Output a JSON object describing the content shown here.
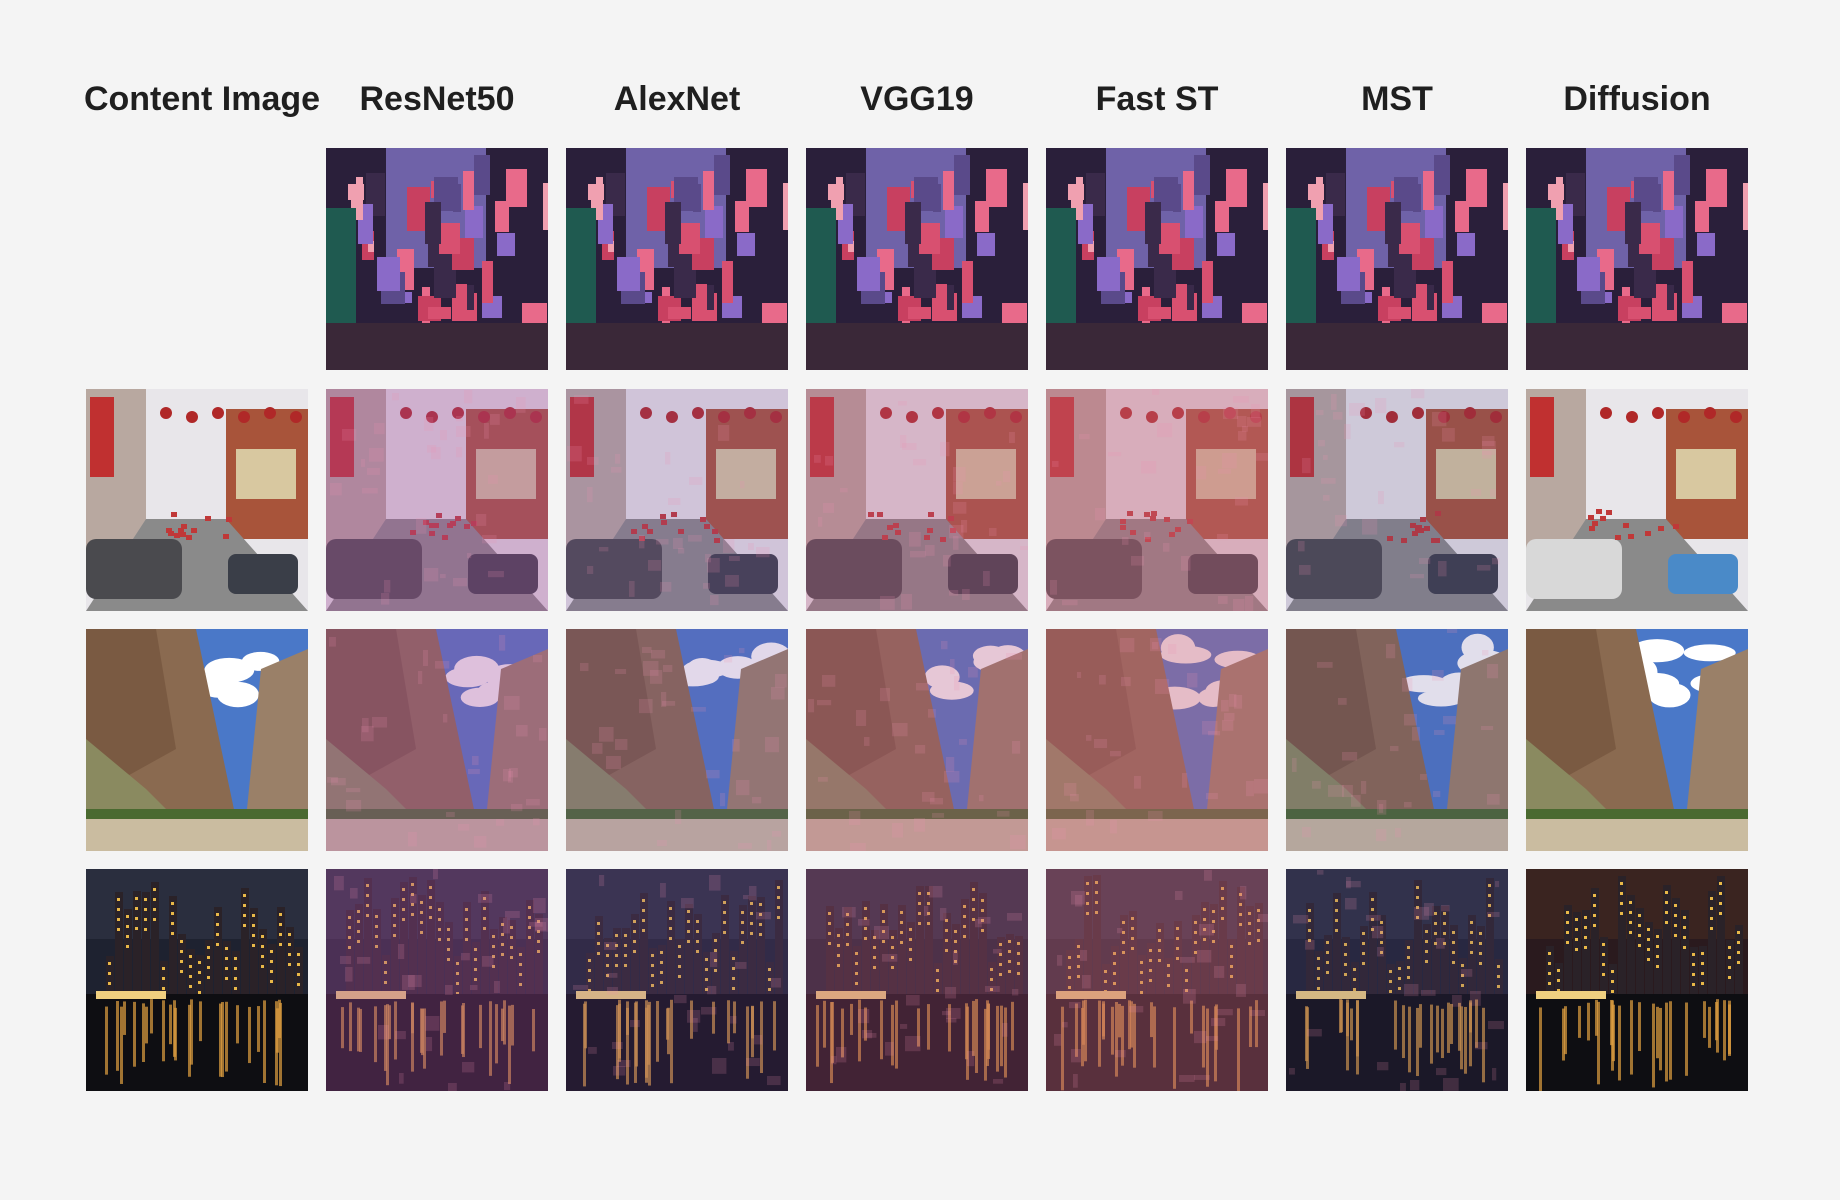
{
  "columns": [
    {
      "id": "content",
      "label": "Content Image"
    },
    {
      "id": "resnet50",
      "label": "ResNet50"
    },
    {
      "id": "alexnet",
      "label": "AlexNet"
    },
    {
      "id": "vgg19",
      "label": "VGG19"
    },
    {
      "id": "fastst",
      "label": "Fast ST"
    },
    {
      "id": "mst",
      "label": "MST"
    },
    {
      "id": "diffusion",
      "label": "Diffusion"
    }
  ],
  "rows": [
    {
      "id": "style",
      "scene": "neon-street",
      "has_content": false
    },
    {
      "id": "chinatown",
      "scene": "chinatown-street",
      "has_content": true
    },
    {
      "id": "canyon",
      "scene": "canyon",
      "has_content": true
    },
    {
      "id": "skyline",
      "scene": "night-skyline",
      "has_content": true
    }
  ],
  "colors": {
    "background": "#f4f4f4",
    "header_text": "#1f1f1f"
  }
}
